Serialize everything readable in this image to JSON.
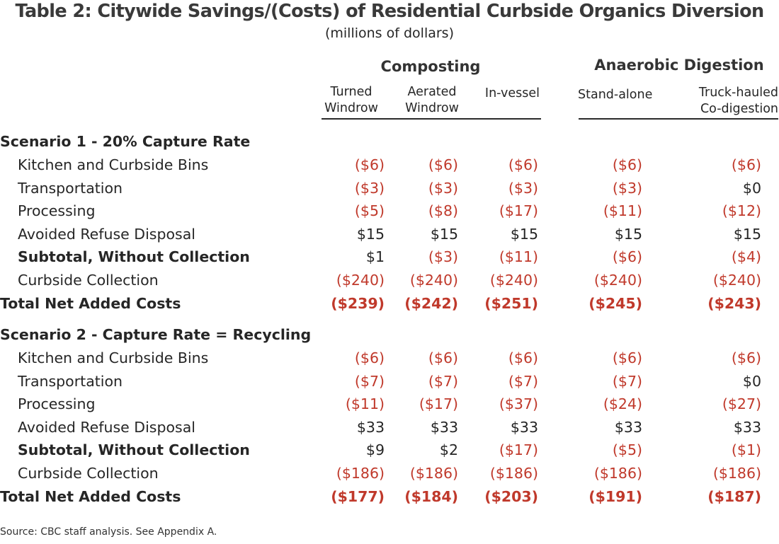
{
  "title": "Table 2: Citywide Savings/(Costs) of Residential Curbside Organics Diversion",
  "subtitle": "(millions of dollars)",
  "groups": {
    "composting": "Composting",
    "anaerobic": "Anaerobic Digestion"
  },
  "columns": [
    {
      "line1": "Turned",
      "line2": "Windrow"
    },
    {
      "line1": "Aerated",
      "line2": "Windrow"
    },
    {
      "line1": "",
      "line2": "In-vessel"
    },
    {
      "line1": "",
      "line2": "Stand-alone"
    },
    {
      "line1": "Truck-hauled",
      "line2": "Co-digestion"
    }
  ],
  "scenario1": {
    "heading": "Scenario 1 - 20% Capture Rate",
    "rows": [
      {
        "label": "Kitchen and Curbside Bins",
        "values": [
          "($6)",
          "($6)",
          "($6)",
          "($6)",
          "($6)"
        ]
      },
      {
        "label": "Transportation",
        "values": [
          "($3)",
          "($3)",
          "($3)",
          "($3)",
          "$0"
        ]
      },
      {
        "label": "Processing",
        "values": [
          "($5)",
          "($8)",
          "($17)",
          "($11)",
          "($12)"
        ]
      },
      {
        "label": "Avoided Refuse Disposal",
        "values": [
          "$15",
          "$15",
          "$15",
          "$15",
          "$15"
        ]
      },
      {
        "label": "Subtotal, Without Collection",
        "values": [
          "$1",
          "($3)",
          "($11)",
          "($6)",
          "($4)"
        ]
      },
      {
        "label": "Curbside Collection",
        "values": [
          "($240)",
          "($240)",
          "($240)",
          "($240)",
          "($240)"
        ]
      },
      {
        "label": "Total Net Added Costs",
        "values": [
          "($239)",
          "($242)",
          "($251)",
          "($245)",
          "($243)"
        ]
      }
    ]
  },
  "scenario2": {
    "heading": "Scenario 2 - Capture Rate = Recycling",
    "rows": [
      {
        "label": "Kitchen and Curbside Bins",
        "values": [
          "($6)",
          "($6)",
          "($6)",
          "($6)",
          "($6)"
        ]
      },
      {
        "label": "Transportation",
        "values": [
          "($7)",
          "($7)",
          "($7)",
          "($7)",
          "$0"
        ]
      },
      {
        "label": "Processing",
        "values": [
          "($11)",
          "($17)",
          "($37)",
          "($24)",
          "($27)"
        ]
      },
      {
        "label": "Avoided Refuse Disposal",
        "values": [
          "$33",
          "$33",
          "$33",
          "$33",
          "$33"
        ]
      },
      {
        "label": "Subtotal, Without Collection",
        "values": [
          "$9",
          "$2",
          "($17)",
          "($5)",
          "($1)"
        ]
      },
      {
        "label": "Curbside Collection",
        "values": [
          "($186)",
          "($186)",
          "($186)",
          "($186)",
          "($186)"
        ]
      },
      {
        "label": "Total Net Added Costs",
        "values": [
          "($177)",
          "($184)",
          "($203)",
          "($191)",
          "($187)"
        ]
      }
    ]
  },
  "source": "Source:  CBC staff analysis. See Appendix A.",
  "colors": {
    "negative": "#c0392b",
    "text": "#262626",
    "rule": "#2a2a2a"
  }
}
